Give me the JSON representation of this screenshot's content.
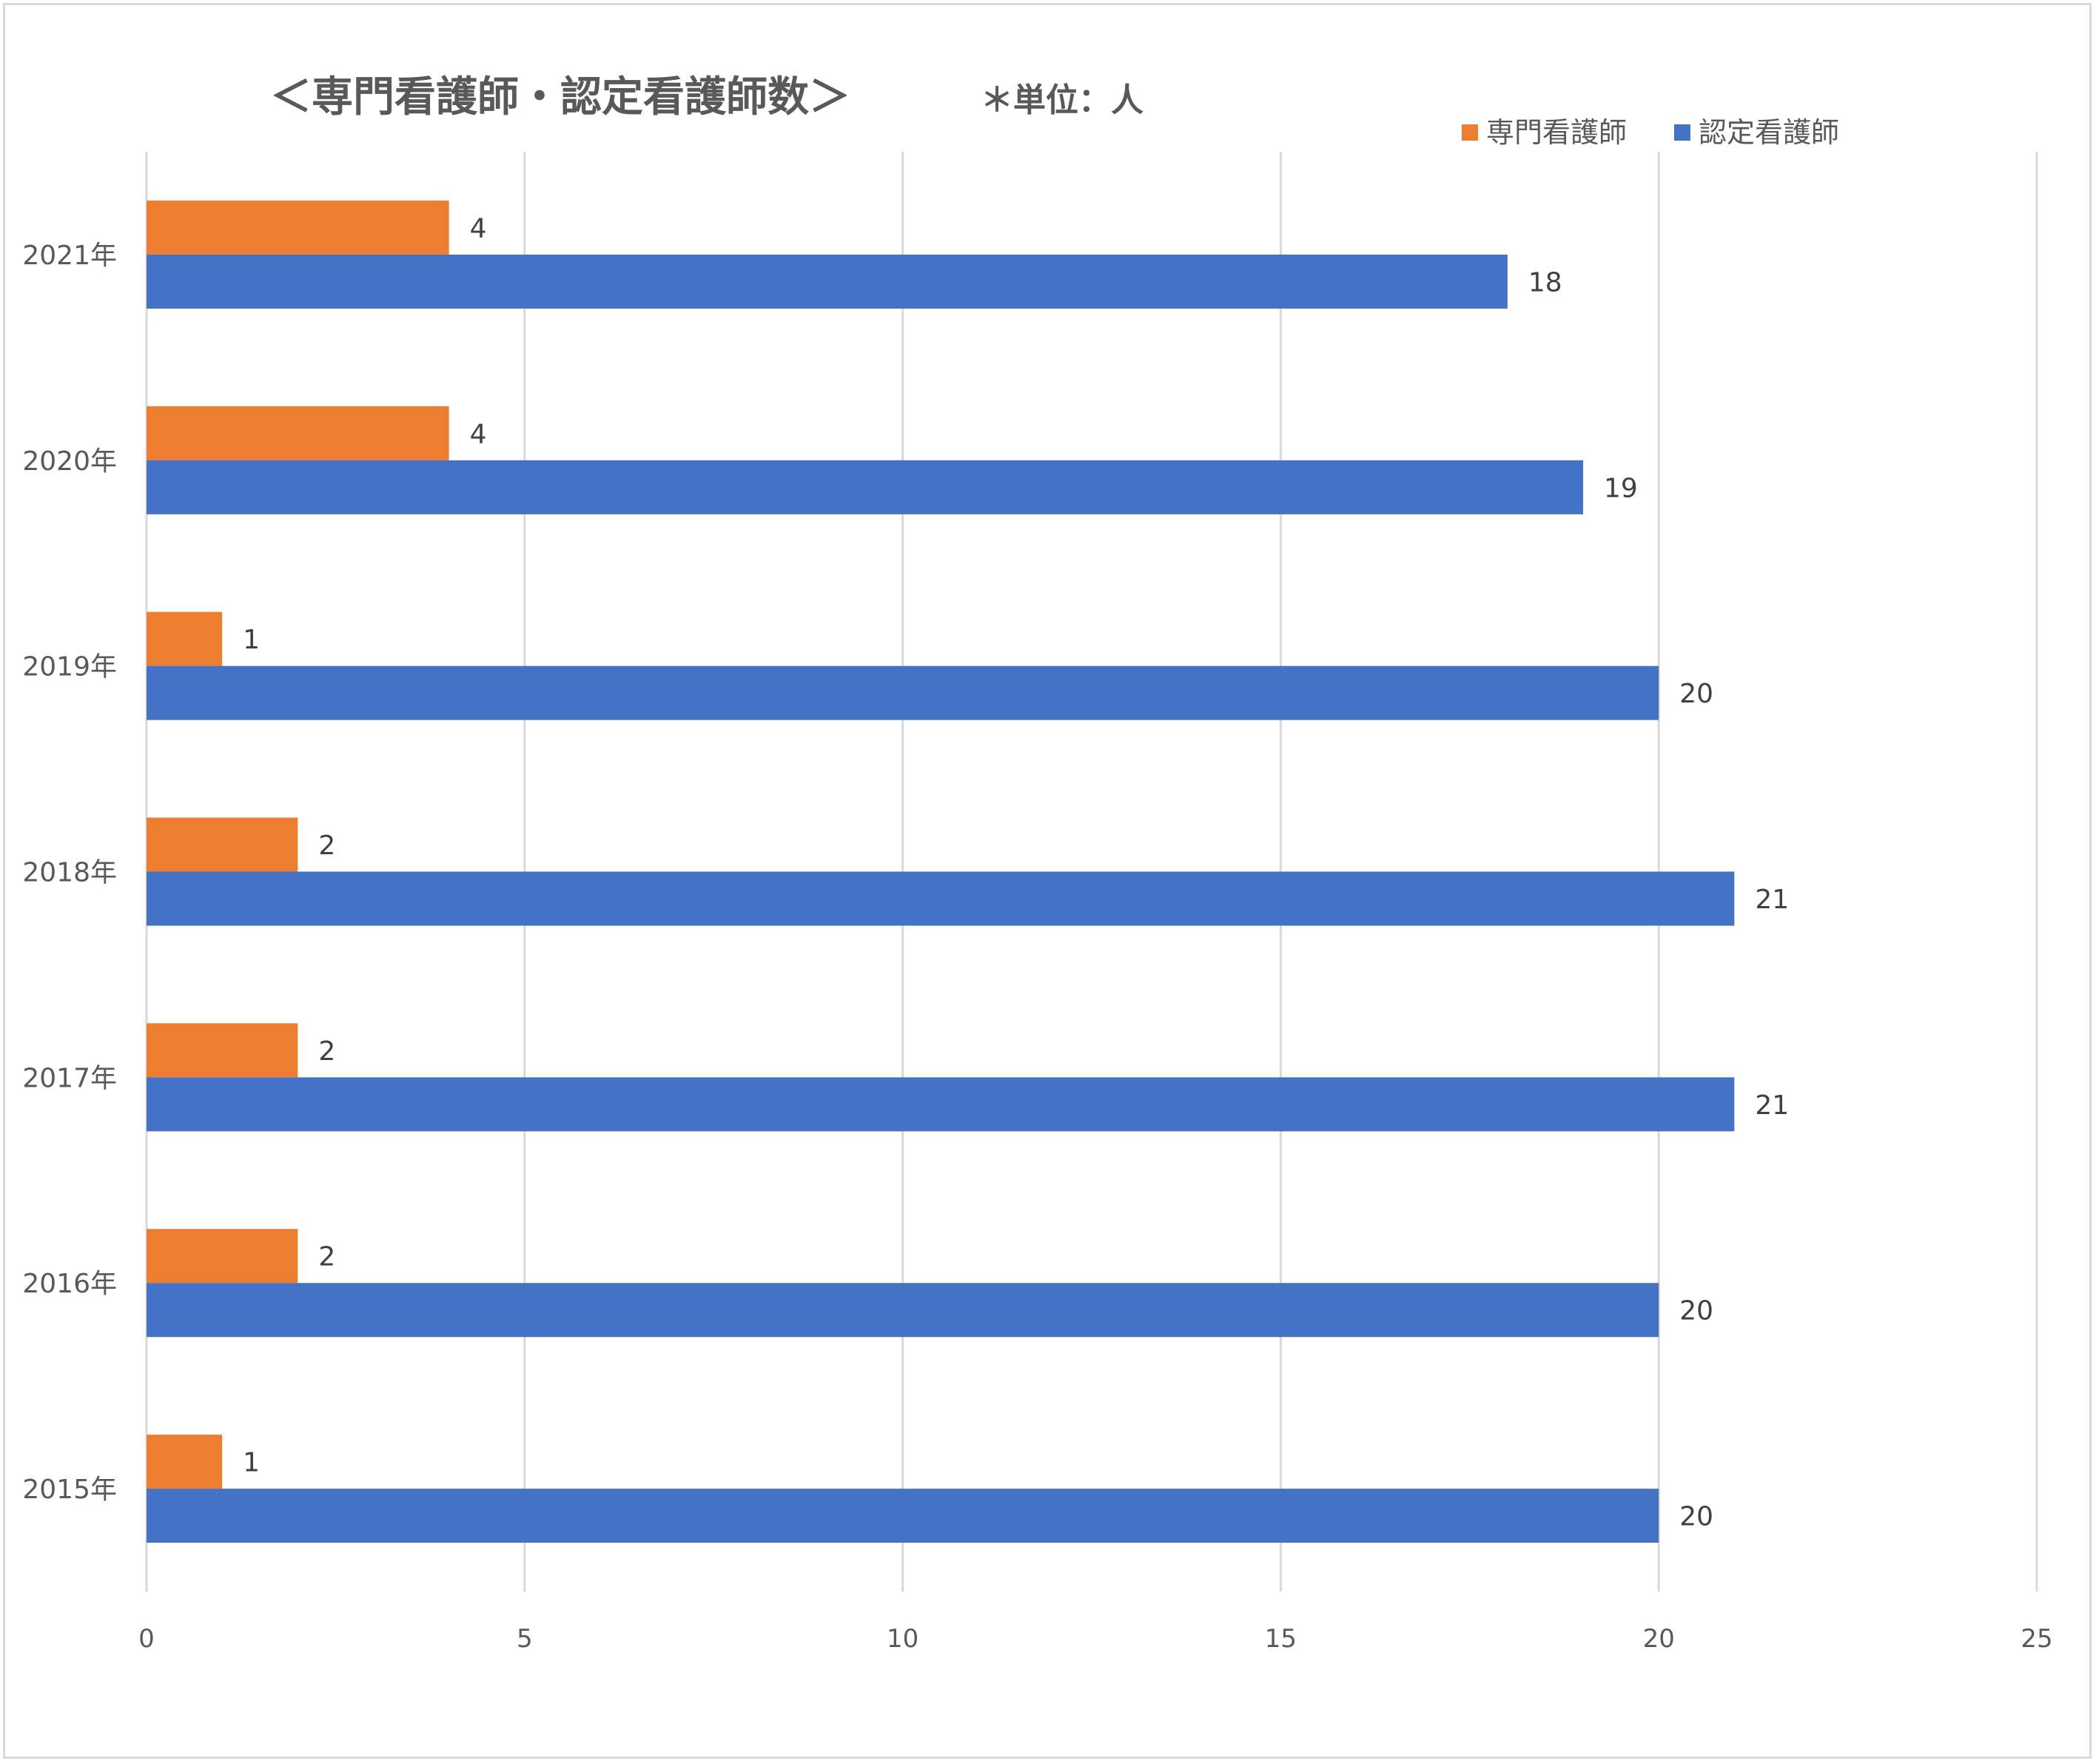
{
  "chart_data": {
    "type": "bar",
    "orientation": "horizontal",
    "title": "＜専門看護師・認定看護師数＞",
    "unit_note": "＊単位：人",
    "categories": [
      "2021年",
      "2020年",
      "2019年",
      "2018年",
      "2017年",
      "2016年",
      "2015年"
    ],
    "series": [
      {
        "name": "専門看護師",
        "color": "#ED7D31",
        "values": [
          4,
          4,
          1,
          2,
          2,
          2,
          1
        ]
      },
      {
        "name": "認定看護師",
        "color": "#4472C4",
        "values": [
          18,
          19,
          20,
          21,
          21,
          20,
          20
        ]
      }
    ],
    "xlim": [
      0,
      25
    ],
    "xticks": [
      0,
      5,
      10,
      15,
      20,
      25
    ],
    "grid": true,
    "legend_position": "top-right",
    "data_labels": true
  }
}
